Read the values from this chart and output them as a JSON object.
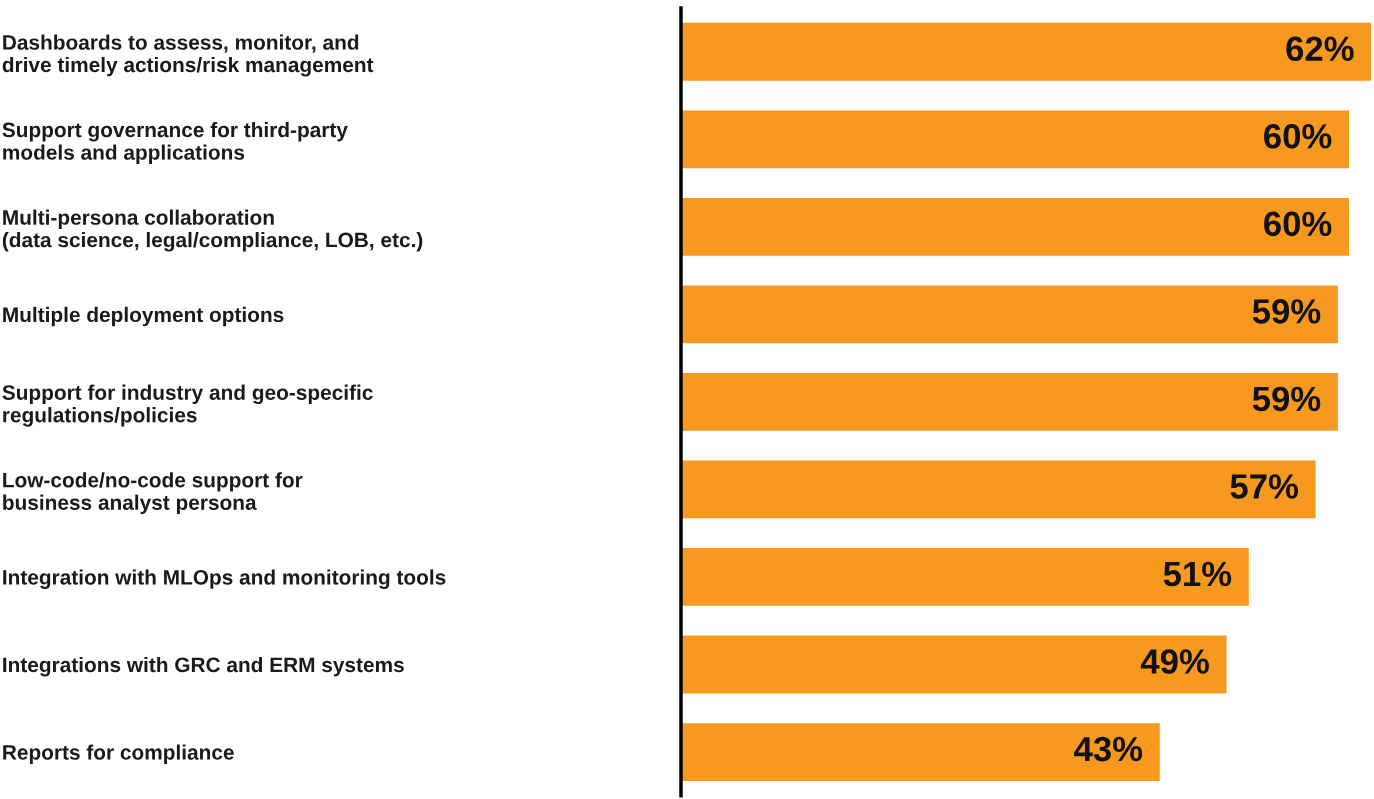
{
  "chart_data": {
    "type": "bar",
    "orientation": "horizontal",
    "categories": [
      "Dashboards to assess, monitor, and\ndrive timely actions/risk management",
      "Support governance for third-party\nmodels and applications",
      "Multi-persona collaboration\n(data science, legal/compliance, LOB, etc.)",
      "Multiple deployment options",
      "Support for industry and geo-specific\nregulations/policies",
      "Low-code/no-code support for\nbusiness analyst persona",
      "Integration with MLOps and monitoring tools",
      "Integrations with GRC and ERM systems",
      "Reports for compliance"
    ],
    "values": [
      62,
      60,
      60,
      59,
      59,
      57,
      51,
      49,
      43
    ],
    "value_labels": [
      "62%",
      "60%",
      "60%",
      "59%",
      "59%",
      "57%",
      "51%",
      "49%",
      "43%"
    ],
    "color": "#f7991f",
    "grid": false,
    "legend": false,
    "tick_labels": "y"
  }
}
